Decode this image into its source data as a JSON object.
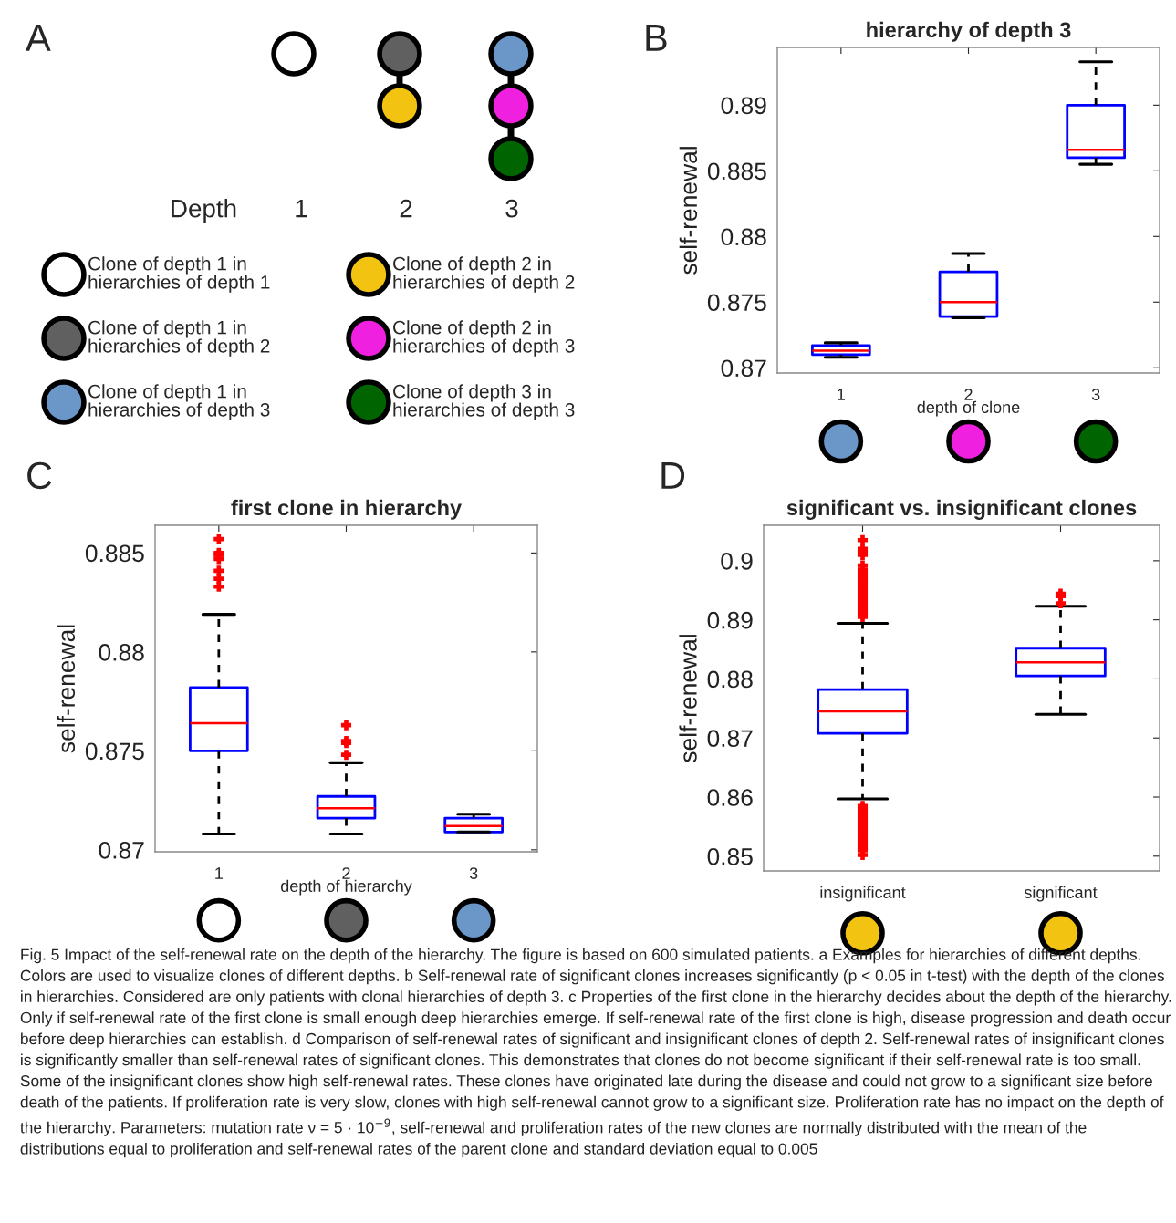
{
  "chart_data": [
    {
      "type": "other",
      "annotations": [
        "A",
        "Depth",
        "1",
        "2",
        "3",
        "Clone of depth 1 in\nhierarchies of depth 1",
        "Clone of depth 1 in\nhierarchies of depth 2",
        "Clone of depth 1 in\nhierarchies of depth 3",
        "Clone of depth 2 in\nhierarchies of depth 2",
        "Clone of depth 2 in\nhierarchies of depth 3",
        "Clone of depth 3 in\nhierarchies of depth 3"
      ]
    },
    {
      "type": "box",
      "title": "hierarchy of depth 3",
      "ylabel": "self-renewal",
      "xlabel": "depth of clone",
      "annotations": [
        "B"
      ],
      "categories": [
        "1",
        "2",
        "3"
      ],
      "ylim": [
        0.8696,
        0.8944
      ],
      "yticks": [
        0.87,
        0.875,
        0.88,
        0.885,
        0.89
      ],
      "series": [
        {
          "color": "#0000ff",
          "boxes": [
            {
              "low": 0.8708,
              "q1": 0.871,
              "median": 0.8713,
              "q3": 0.8717,
              "high": 0.8719
            },
            {
              "low": 0.8738,
              "q1": 0.8739,
              "median": 0.875,
              "q3": 0.8773,
              "high": 0.8787
            },
            {
              "low": 0.8855,
              "q1": 0.886,
              "median": 0.8866,
              "q3": 0.89,
              "high": 0.8933
            }
          ]
        }
      ]
    },
    {
      "type": "box",
      "title": "first clone in hierarchy",
      "ylabel": "self-renewal",
      "xlabel": "depth of hierarchy",
      "annotations": [
        "C"
      ],
      "categories": [
        "1",
        "2",
        "3"
      ],
      "ylim": [
        0.8699,
        0.8864
      ],
      "yticks": [
        0.87,
        0.875,
        0.88,
        0.885
      ],
      "series": [
        {
          "color": "#0000ff",
          "boxes": [
            {
              "low": 0.8708,
              "q1": 0.875,
              "median": 0.8764,
              "q3": 0.8782,
              "high": 0.8819,
              "outliers": [
                0.8857,
                0.885,
                0.8849,
                0.8847,
                0.8841,
                0.8837,
                0.8833
              ]
            },
            {
              "low": 0.8708,
              "q1": 0.8716,
              "median": 0.8721,
              "q3": 0.8727,
              "high": 0.8744,
              "outliers": [
                0.8763,
                0.8755,
                0.8754,
                0.8748
              ]
            },
            {
              "low": 0.8709,
              "q1": 0.8709,
              "median": 0.8712,
              "q3": 0.8716,
              "high": 0.8718
            }
          ]
        }
      ]
    },
    {
      "type": "box",
      "title": "significant vs. insignificant clones",
      "ylabel": "self-renewal",
      "annotations": [
        "D"
      ],
      "categories": [
        "insignificant",
        "significant"
      ],
      "ylim": [
        0.8475,
        0.906
      ],
      "yticks": [
        0.85,
        0.86,
        0.87,
        0.88,
        0.89,
        0.9
      ],
      "series": [
        {
          "color": "#0000ff",
          "boxes": [
            {
              "low": 0.8597,
              "q1": 0.8708,
              "median": 0.8745,
              "q3": 0.8782,
              "high": 0.8894,
              "outliers": [
                0.8905,
                0.891,
                0.8915,
                0.892,
                0.8925,
                0.893,
                0.8935,
                0.894,
                0.8945,
                0.895,
                0.8955,
                0.896,
                0.8965,
                0.897,
                0.8975,
                0.898,
                0.8985,
                0.8992,
                0.901,
                0.9015,
                0.902,
                0.9035,
                0.8585,
                0.858,
                0.8575,
                0.857,
                0.8565,
                0.856,
                0.8555,
                0.855,
                0.8545,
                0.854,
                0.8535,
                0.853,
                0.8525,
                0.852,
                0.8515,
                0.851,
                0.8502
              ]
            },
            {
              "low": 0.874,
              "q1": 0.8805,
              "median": 0.8828,
              "q3": 0.8852,
              "high": 0.8923,
              "outliers": [
                0.8944,
                0.894,
                0.8928
              ]
            }
          ]
        }
      ]
    },
    {
      "type": "other",
      "annotations": [
        "Fig. 5 Impact of the self-renewal rate on the depth of the hierarchy. The figure is based on 600 simulated patients. a Examples for hierarchies of different depths. Colors are used to visualize clones of different depths. b Self-renewal rate of significant clones increases significantly (p < 0.05 in t-test) with the depth of the clones in hierarchies. Considered are only patients with clonal hierarchies of depth 3. c Properties of the first clone in the hierarchy decides about the depth of the hierarchy. Only if self-renewal rate of the first clone is small enough deep hierarchies emerge. If self-renewal rate of the first clone is high, disease progression and death occur before deep hierarchies can establish. d Comparison of self-renewal rates of significant and insignificant clones of depth 2. Self-renewal rates of insignificant clones is significantly smaller than self-renewal rates of significant clones. This demonstrates that clones do not become significant if their self-renewal rate is too small. Some of the insignificant clones show high self-renewal rates. These clones have originated late during the disease and could not grow to a significant size before death of the patients. If proliferation rate is very slow, clones with high self-renewal cannot grow to a significant size. Proliferation rate has no impact on the depth of the hierarchy. Parameters: mutation rate ν = 5 · 10$^{−9}$, self-renewal and proliferation rates of the new clones are normally distributed with the mean of the distributions equal to proliferation and self-renewal rates of the parent clone and standard deviation equal to 0.005"
      ]
    }
  ]
}
